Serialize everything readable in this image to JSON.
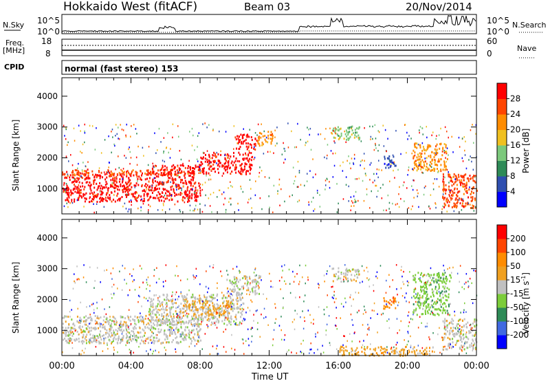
{
  "header": {
    "site": "Hokkaido West (fitACF)",
    "beam": "Beam 03",
    "date": "20/Nov/2014"
  },
  "noise_panel": {
    "left_label": "N.Sky",
    "right_label": "N.Search",
    "left_ticks": [
      "10^5",
      "10^0"
    ],
    "right_ticks": [
      "10^5",
      "10^0"
    ]
  },
  "freq_panel": {
    "left_label": "Freq.",
    "left_unit": "[MHz]",
    "left_ticks": [
      "18",
      "8"
    ],
    "right_label": "Nave",
    "right_ticks": [
      "60",
      "0"
    ]
  },
  "cpid_panel": {
    "label": "CPID",
    "mode": "normal (fast stereo) 153"
  },
  "chart_data": [
    {
      "type": "heatmap",
      "name": "power",
      "ylabel": "Slant Range [km]",
      "yticks": [
        1000,
        2000,
        3000,
        4000
      ],
      "ylim": [
        180,
        4600
      ],
      "xlim_hours": [
        0,
        24
      ],
      "colorbar_label": "Power [dB]",
      "colorbar_ticks": [
        "28",
        "24",
        "20",
        "16",
        "12",
        "8",
        "4"
      ],
      "colors": [
        "#0000ff",
        "#2f4fb0",
        "#2e8b57",
        "#7cc97c",
        "#f0c020",
        "#ff8c00",
        "#ff4500",
        "#ff0000"
      ],
      "regions": [
        {
          "t0": 0.0,
          "t1": 8.0,
          "r0": 600,
          "r1": 1500,
          "level": 7
        },
        {
          "t0": 0.0,
          "t1": 8.0,
          "r0": 1450,
          "r1": 1650,
          "level": 6
        },
        {
          "t0": 5.0,
          "t1": 8.0,
          "r0": 1500,
          "r1": 1800,
          "level": 7
        },
        {
          "t0": 8.0,
          "t1": 11.0,
          "r0": 1500,
          "r1": 2200,
          "level": 7
        },
        {
          "t0": 10.0,
          "t1": 11.3,
          "r0": 2300,
          "r1": 2800,
          "level": 7
        },
        {
          "t0": 11.3,
          "t1": 12.2,
          "r0": 2400,
          "r1": 2900,
          "level": 5
        },
        {
          "t0": 15.6,
          "t1": 17.2,
          "r0": 2600,
          "r1": 3050,
          "level": 3
        },
        {
          "t0": 18.5,
          "t1": 19.3,
          "r0": 1700,
          "r1": 2100,
          "level": 1
        },
        {
          "t0": 20.3,
          "t1": 22.3,
          "r0": 1600,
          "r1": 2500,
          "level": 5
        },
        {
          "t0": 22.0,
          "t1": 24.0,
          "r0": 400,
          "r1": 1500,
          "level": 6
        }
      ]
    },
    {
      "type": "heatmap",
      "name": "velocity",
      "ylabel": "Slant Range [km]",
      "yticks": [
        1000,
        2000,
        3000,
        4000
      ],
      "ylim": [
        180,
        4600
      ],
      "xlabel": "Time UT",
      "xticks": [
        "00:00",
        "04:00",
        "08:00",
        "12:00",
        "16:00",
        "20:00",
        "00:00"
      ],
      "xlim_hours": [
        0,
        24
      ],
      "colorbar_label": "Velocity [m s",
      "colorbar_label_sup": "-1",
      "colorbar_label_end": "]",
      "colorbar_ticks": [
        "200",
        "100",
        "50",
        "15",
        "-15",
        "-50",
        "-100",
        "-200"
      ],
      "colors": [
        "#0000ff",
        "#4169e1",
        "#2e8b57",
        "#7ccd3a",
        "#c0c0c0",
        "#f0a020",
        "#ff8c00",
        "#ff4500",
        "#ff0000"
      ],
      "regions": [
        {
          "t0": 0.0,
          "t1": 8.0,
          "r0": 600,
          "r1": 1500,
          "level": 4
        },
        {
          "t0": 5.0,
          "t1": 10.5,
          "r0": 1200,
          "r1": 2200,
          "level": 4
        },
        {
          "t0": 7.0,
          "t1": 9.8,
          "r0": 1500,
          "r1": 2000,
          "level": 5
        },
        {
          "t0": 9.5,
          "t1": 11.5,
          "r0": 2200,
          "r1": 2800,
          "level": 4
        },
        {
          "t0": 15.6,
          "t1": 17.2,
          "r0": 2600,
          "r1": 3050,
          "level": 4
        },
        {
          "t0": 18.5,
          "t1": 19.3,
          "r0": 1700,
          "r1": 2100,
          "level": 6
        },
        {
          "t0": 20.3,
          "t1": 22.5,
          "r0": 1500,
          "r1": 2900,
          "level": 3
        },
        {
          "t0": 22.0,
          "t1": 24.0,
          "r0": 400,
          "r1": 1400,
          "level": 4
        },
        {
          "t0": 16.0,
          "t1": 21.5,
          "r0": 200,
          "r1": 500,
          "level": 5
        }
      ]
    }
  ]
}
